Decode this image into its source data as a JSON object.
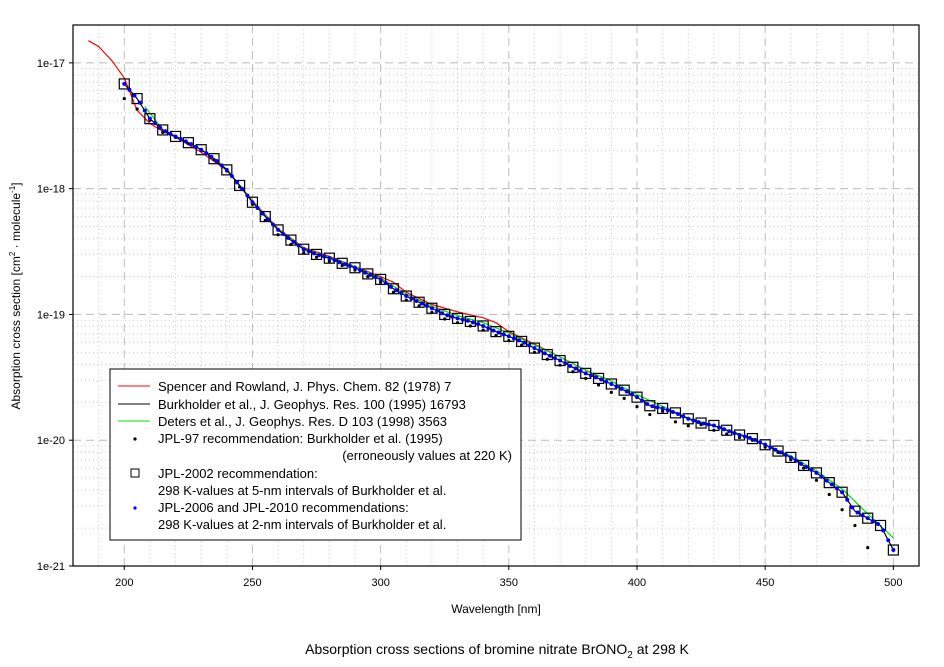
{
  "chart_data": {
    "type": "line",
    "title": {
      "main": "Absorption cross sections of bromine nitrate BrONO",
      "sub": "2",
      "tail": " at 298 K"
    },
    "xlabel": "Wavelength [nm]",
    "ylabel": {
      "a": "Absorption cross section [cm",
      "sup1": "2",
      "b": " · molecule",
      "sup2": "-1",
      "c": "]"
    },
    "xlim": [
      180,
      510
    ],
    "ylim": [
      1e-21,
      2e-17
    ],
    "yscale": "log",
    "grid": true,
    "x_ticks": [
      200,
      250,
      300,
      350,
      400,
      450,
      500
    ],
    "x_tick_labels": [
      "200",
      "250",
      "300",
      "350",
      "400",
      "450",
      "500"
    ],
    "y_ticks": [
      1e-17,
      1e-18,
      1e-19,
      1e-20,
      1e-21
    ],
    "y_tick_labels": [
      "1e-17",
      "1e-18",
      "1e-19",
      "1e-20",
      "1e-21"
    ],
    "legend_placement": "bottom-left",
    "series": [
      {
        "name": "Spencer and Rowland, J. Phys. Chem. 82 (1978) 7",
        "kind": "line",
        "color": "#ff0000",
        "x": [
          186,
          190,
          195,
          200,
          205,
          210,
          215,
          220,
          230,
          240,
          250,
          260,
          270,
          280,
          290,
          300,
          305,
          310,
          320,
          330,
          340,
          345,
          350,
          360,
          370,
          380,
          385
        ],
        "y": [
          1.5e-17,
          1.35e-17,
          1.05e-17,
          7.6e-18,
          4.2e-18,
          3.3e-18,
          2.85e-18,
          2.57e-18,
          1.95e-18,
          1.4e-18,
          8e-19,
          4.8e-19,
          3.4e-19,
          2.9e-19,
          2.4e-19,
          2e-19,
          1.8e-19,
          1.5e-19,
          1.2e-19,
          1.05e-19,
          9.4e-20,
          8.6e-20,
          7.3e-20,
          5.8e-20,
          4.6e-20,
          3.6e-20,
          3.2e-20
        ]
      },
      {
        "name": "Burkholder et al., J. Geophys. Res. 100 (1995) 16793",
        "kind": "line",
        "color": "#000000",
        "same_as": "JPL-2002"
      },
      {
        "name": "Deters et al., J. Geophys. Res. D 103 (1998) 3563",
        "kind": "line",
        "color": "#00dd00",
        "x": [
          208,
          215,
          220,
          230,
          240,
          250,
          260,
          270,
          280,
          290,
          300,
          310,
          320,
          330,
          340,
          350,
          360,
          370,
          380,
          390,
          400,
          420,
          440,
          460,
          470,
          480,
          490,
          500
        ],
        "y": [
          4.5e-18,
          2.95e-18,
          2.62e-18,
          2.06e-18,
          1.43e-18,
          7.9e-19,
          4.75e-19,
          3.35e-19,
          2.85e-19,
          2.4e-19,
          1.95e-19,
          1.45e-19,
          1.16e-19,
          9.8e-20,
          8.6e-20,
          7.1e-20,
          5.7e-20,
          4.6e-20,
          3.6e-20,
          2.95e-20,
          2.3e-20,
          1.5e-20,
          1.12e-20,
          7.5e-21,
          5.7e-21,
          4.1e-21,
          2.6e-21,
          1.67e-21
        ]
      },
      {
        "name": "JPL-97 recommendation: Burkholder et al. (1995)",
        "name2": "(erroneously values at 220 K)",
        "kind": "scatter",
        "marker": "small-dot",
        "color": "#000000",
        "x": [
          200,
          205,
          210,
          215,
          220,
          225,
          230,
          235,
          240,
          245,
          250,
          255,
          260,
          265,
          270,
          275,
          280,
          285,
          290,
          295,
          300,
          305,
          310,
          315,
          320,
          325,
          330,
          335,
          340,
          345,
          350,
          355,
          360,
          365,
          370,
          375,
          380,
          385,
          390,
          395,
          400,
          405,
          410,
          415,
          420,
          425,
          430,
          435,
          440,
          445,
          450,
          455,
          460,
          465,
          470,
          475,
          480,
          485,
          490
        ],
        "y": [
          5.2e-18,
          4.3e-18,
          3.5e-18,
          2.8e-18,
          2.55e-18,
          2.28e-18,
          2e-18,
          1.7e-18,
          1.38e-18,
          1.03e-18,
          7.5e-19,
          5.6e-19,
          4.3e-19,
          3.6e-19,
          3.1e-19,
          2.85e-19,
          2.65e-19,
          2.45e-19,
          2.25e-19,
          2e-19,
          1.8e-19,
          1.5e-19,
          1.3e-19,
          1.17e-19,
          1.04e-19,
          9.2e-20,
          8.6e-20,
          8.1e-20,
          7.5e-20,
          6.8e-20,
          6.2e-20,
          5.7e-20,
          5e-20,
          4.4e-20,
          3.95e-20,
          3.5e-20,
          3.1e-20,
          2.75e-20,
          2.4e-20,
          2.15e-20,
          1.85e-20,
          1.6e-20,
          1.7e-20,
          1.4e-20,
          1.3e-20,
          1.33e-20,
          1.2e-20,
          1.12e-20,
          1.05e-20,
          1e-20,
          8.8e-21,
          8e-21,
          7e-21,
          6e-21,
          4.8e-21,
          3.7e-21,
          2.8e-21,
          2.1e-21,
          1.4e-21
        ]
      },
      {
        "name": "JPL-2002 recommendation:",
        "name2": "298 K-values at 5-nm intervals of Burkholder et al.",
        "kind": "scatter",
        "marker": "open-square",
        "color": "#000000",
        "x": [
          200,
          205,
          210,
          215,
          220,
          225,
          230,
          235,
          240,
          245,
          250,
          255,
          260,
          265,
          270,
          275,
          280,
          285,
          290,
          295,
          300,
          305,
          310,
          315,
          320,
          325,
          330,
          335,
          340,
          345,
          350,
          355,
          360,
          365,
          370,
          375,
          380,
          385,
          390,
          395,
          400,
          405,
          410,
          415,
          420,
          425,
          430,
          435,
          440,
          445,
          450,
          455,
          460,
          465,
          470,
          475,
          480,
          485,
          490,
          495,
          500
        ],
        "y": [
          6.8e-18,
          5.2e-18,
          3.6e-18,
          2.93e-18,
          2.6e-18,
          2.32e-18,
          2.04e-18,
          1.73e-18,
          1.41e-18,
          1.06e-18,
          7.8e-19,
          6e-19,
          4.7e-19,
          3.9e-19,
          3.3e-19,
          3e-19,
          2.8e-19,
          2.55e-19,
          2.35e-19,
          2.1e-19,
          1.9e-19,
          1.6e-19,
          1.4e-19,
          1.25e-19,
          1.12e-19,
          1e-19,
          9.3e-20,
          8.8e-20,
          8.1e-20,
          7.3e-20,
          6.7e-20,
          6.1e-20,
          5.4e-20,
          4.8e-20,
          4.3e-20,
          3.8e-20,
          3.4e-20,
          3.1e-20,
          2.8e-20,
          2.5e-20,
          2.2e-20,
          1.88e-20,
          1.79e-20,
          1.65e-20,
          1.48e-20,
          1.37e-20,
          1.31e-20,
          1.2e-20,
          1.1e-20,
          1.03e-20,
          9.2e-21,
          8.2e-21,
          7.3e-21,
          6.3e-21,
          5.5e-21,
          4.6e-21,
          3.86e-21,
          2.73e-21,
          2.4e-21,
          2.1e-21,
          1.34e-21
        ]
      },
      {
        "name": "JPL-2006 and JPL-2010 recommendations:",
        "name2": "298 K-values at 2-nm intervals of Burkholder et al.",
        "kind": "scatter",
        "marker": "dot",
        "color": "#0000ff",
        "x_range": [
          200,
          500
        ],
        "x_step": 2,
        "values_from": "Burkholder et al. (interpolated)"
      }
    ]
  }
}
